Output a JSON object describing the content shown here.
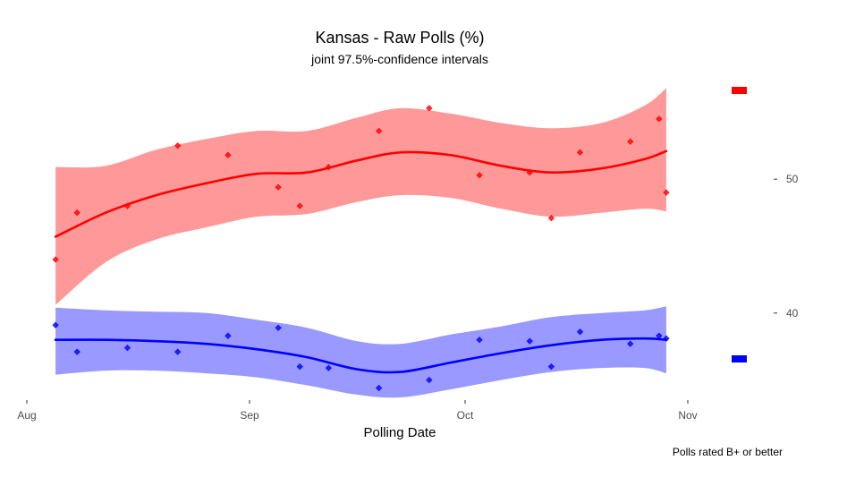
{
  "chart_data": {
    "type": "scatter",
    "title": "Kansas - Raw Polls (%)",
    "subtitle": "joint 97.5%-confidence intervals",
    "xlabel": "Polling Date",
    "ylabel": "",
    "caption": "Polls rated B+ or better",
    "x_ticks": [
      "Aug",
      "Sep",
      "Oct",
      "Nov"
    ],
    "y_ticks": [
      40,
      50
    ],
    "xlim": [
      "2016-08-01",
      "2016-11-01"
    ],
    "ylim": [
      33.5,
      57.5
    ],
    "grid": false,
    "legend_placement": "right",
    "series": [
      {
        "color": "#ff0000",
        "band_color": "#ff9999",
        "points": [
          {
            "x": "2016-08-05",
            "y": 44.0
          },
          {
            "x": "2016-08-08",
            "y": 47.5
          },
          {
            "x": "2016-08-15",
            "y": 48.0
          },
          {
            "x": "2016-08-22",
            "y": 52.5
          },
          {
            "x": "2016-08-29",
            "y": 51.8
          },
          {
            "x": "2016-09-05",
            "y": 49.4
          },
          {
            "x": "2016-09-08",
            "y": 48.0
          },
          {
            "x": "2016-09-12",
            "y": 50.9
          },
          {
            "x": "2016-09-19",
            "y": 53.6
          },
          {
            "x": "2016-09-26",
            "y": 55.3
          },
          {
            "x": "2016-10-03",
            "y": 50.3
          },
          {
            "x": "2016-10-10",
            "y": 50.5
          },
          {
            "x": "2016-10-13",
            "y": 47.1
          },
          {
            "x": "2016-10-17",
            "y": 52.0
          },
          {
            "x": "2016-10-24",
            "y": 52.8
          },
          {
            "x": "2016-10-28",
            "y": 54.5
          },
          {
            "x": "2016-10-29",
            "y": 49.0
          }
        ],
        "trend": [
          {
            "x": "2016-08-05",
            "y": 45.7,
            "lo": 40.6,
            "hi": 50.9
          },
          {
            "x": "2016-08-12",
            "y": 47.5,
            "lo": 43.8,
            "hi": 51.0
          },
          {
            "x": "2016-08-19",
            "y": 48.8,
            "lo": 45.5,
            "hi": 52.2
          },
          {
            "x": "2016-08-26",
            "y": 49.7,
            "lo": 46.4,
            "hi": 53.0
          },
          {
            "x": "2016-09-02",
            "y": 50.4,
            "lo": 47.2,
            "hi": 53.6
          },
          {
            "x": "2016-09-09",
            "y": 50.5,
            "lo": 47.4,
            "hi": 53.6
          },
          {
            "x": "2016-09-16",
            "y": 51.4,
            "lo": 48.3,
            "hi": 54.6
          },
          {
            "x": "2016-09-22",
            "y": 52.0,
            "lo": 48.8,
            "hi": 55.3
          },
          {
            "x": "2016-09-29",
            "y": 51.8,
            "lo": 48.6,
            "hi": 54.9
          },
          {
            "x": "2016-10-06",
            "y": 51.0,
            "lo": 47.8,
            "hi": 54.2
          },
          {
            "x": "2016-10-13",
            "y": 50.5,
            "lo": 47.2,
            "hi": 53.8
          },
          {
            "x": "2016-10-20",
            "y": 50.8,
            "lo": 47.5,
            "hi": 54.2
          },
          {
            "x": "2016-10-26",
            "y": 51.5,
            "lo": 47.8,
            "hi": 55.5
          },
          {
            "x": "2016-10-29",
            "y": 52.1,
            "lo": 47.6,
            "hi": 56.8
          }
        ]
      },
      {
        "color": "#0000ff",
        "band_color": "#9999ff",
        "points": [
          {
            "x": "2016-08-05",
            "y": 39.1
          },
          {
            "x": "2016-08-08",
            "y": 37.1
          },
          {
            "x": "2016-08-15",
            "y": 37.4
          },
          {
            "x": "2016-08-22",
            "y": 37.1
          },
          {
            "x": "2016-08-29",
            "y": 38.3
          },
          {
            "x": "2016-09-05",
            "y": 38.9
          },
          {
            "x": "2016-09-08",
            "y": 36.0
          },
          {
            "x": "2016-09-12",
            "y": 35.9
          },
          {
            "x": "2016-09-19",
            "y": 34.4
          },
          {
            "x": "2016-09-26",
            "y": 35.0
          },
          {
            "x": "2016-10-03",
            "y": 38.0
          },
          {
            "x": "2016-10-10",
            "y": 37.9
          },
          {
            "x": "2016-10-13",
            "y": 36.0
          },
          {
            "x": "2016-10-17",
            "y": 38.6
          },
          {
            "x": "2016-10-24",
            "y": 37.7
          },
          {
            "x": "2016-10-28",
            "y": 38.3
          },
          {
            "x": "2016-10-29",
            "y": 38.1
          }
        ],
        "trend": [
          {
            "x": "2016-08-05",
            "y": 38.0,
            "lo": 35.4,
            "hi": 40.4
          },
          {
            "x": "2016-08-12",
            "y": 38.0,
            "lo": 35.7,
            "hi": 40.2
          },
          {
            "x": "2016-08-19",
            "y": 37.9,
            "lo": 35.7,
            "hi": 40.1
          },
          {
            "x": "2016-08-26",
            "y": 37.7,
            "lo": 35.5,
            "hi": 40.0
          },
          {
            "x": "2016-09-02",
            "y": 37.3,
            "lo": 35.2,
            "hi": 39.5
          },
          {
            "x": "2016-09-09",
            "y": 36.7,
            "lo": 34.6,
            "hi": 38.9
          },
          {
            "x": "2016-09-16",
            "y": 35.8,
            "lo": 33.9,
            "hi": 37.9
          },
          {
            "x": "2016-09-22",
            "y": 35.6,
            "lo": 33.7,
            "hi": 37.7
          },
          {
            "x": "2016-09-29",
            "y": 36.3,
            "lo": 34.3,
            "hi": 38.4
          },
          {
            "x": "2016-10-06",
            "y": 37.0,
            "lo": 35.0,
            "hi": 39.0
          },
          {
            "x": "2016-10-13",
            "y": 37.6,
            "lo": 35.6,
            "hi": 39.7
          },
          {
            "x": "2016-10-20",
            "y": 38.0,
            "lo": 35.9,
            "hi": 40.0
          },
          {
            "x": "2016-10-26",
            "y": 38.1,
            "lo": 35.9,
            "hi": 40.2
          },
          {
            "x": "2016-10-29",
            "y": 38.0,
            "lo": 35.5,
            "hi": 40.5
          }
        ]
      }
    ]
  }
}
